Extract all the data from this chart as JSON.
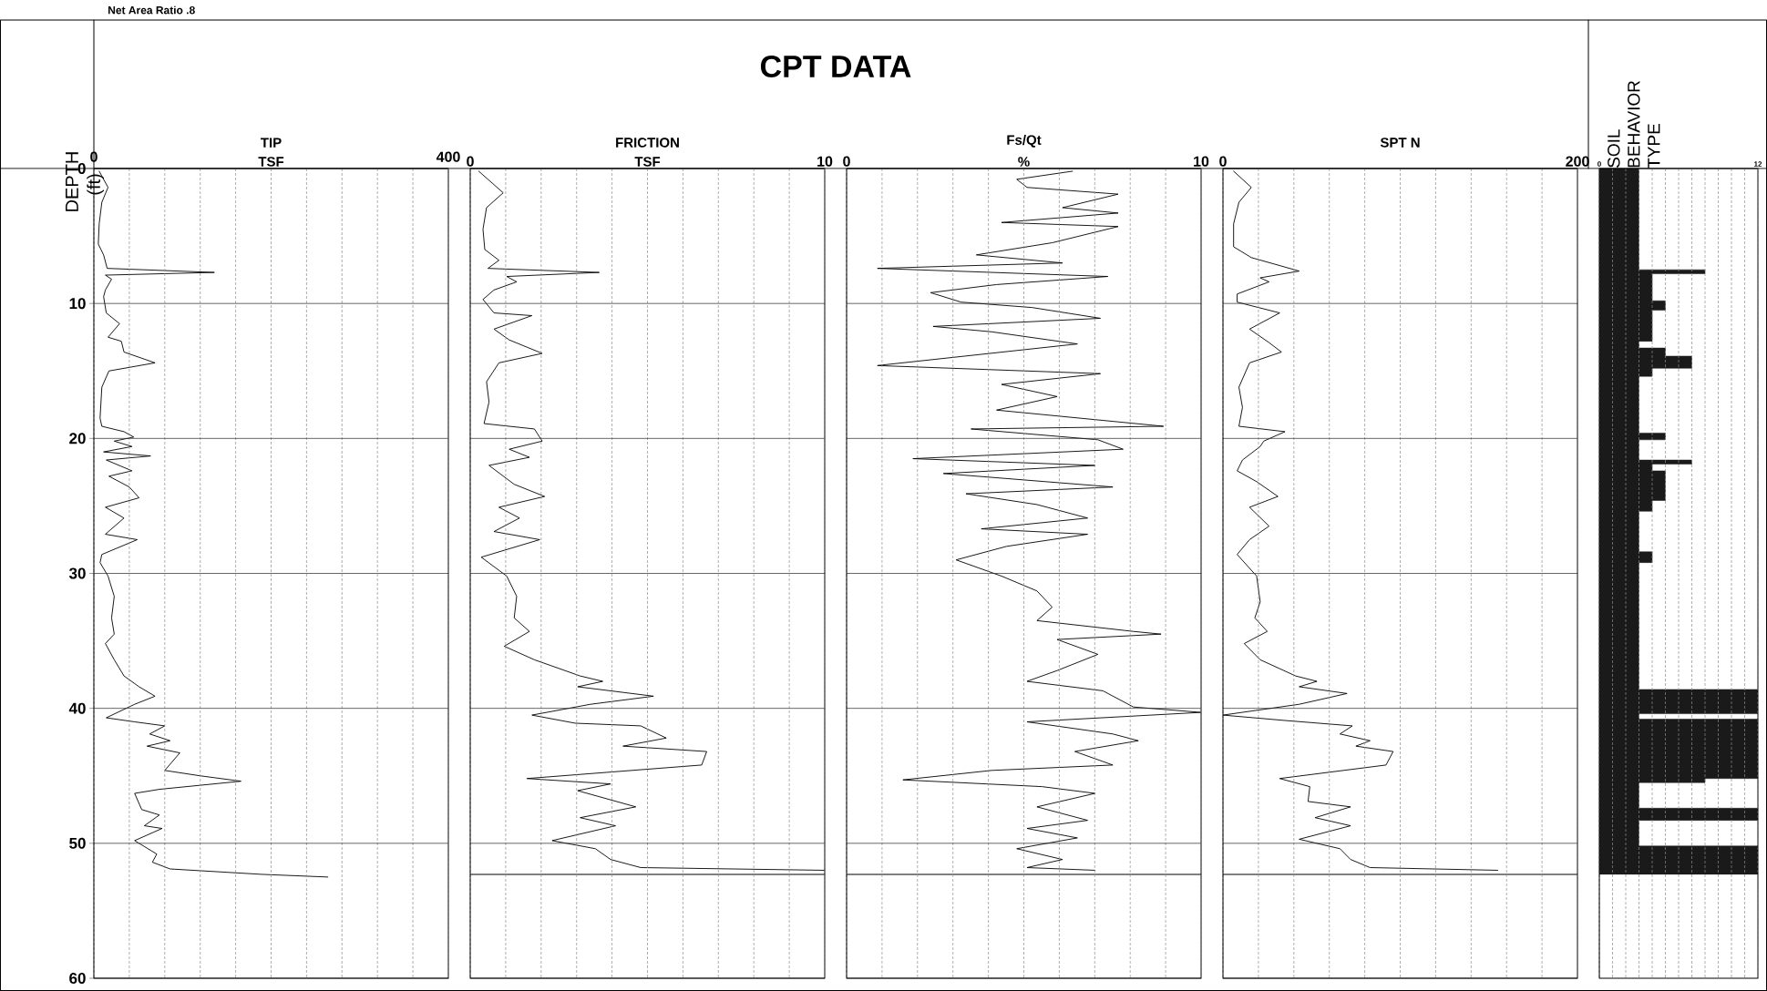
{
  "chart_data": [
    {
      "type": "line",
      "title": "TIP",
      "xlabel": "TSF",
      "ylabel": "DEPTH (ft)",
      "orientation": "horizontal",
      "annotations": [
        "CPT DATA",
        "Net Area Ratio .8"
      ],
      "xlim": [
        0,
        400
      ],
      "xticks": [
        0,
        {
          "value": 40,
          "label": null
        },
        {
          "value": 80,
          "label": null
        },
        {
          "value": 120,
          "label": null
        },
        {
          "value": 160,
          "label": null
        },
        {
          "value": 200,
          "label": null
        },
        {
          "value": 240,
          "label": null
        },
        {
          "value": 280,
          "label": null
        },
        {
          "value": 320,
          "label": null
        },
        {
          "value": 360,
          "label": null
        },
        400
      ],
      "ylim": [
        60,
        0
      ],
      "yticks": [
        0,
        10,
        20,
        30,
        40,
        50,
        60
      ],
      "grid": true,
      "series": [
        {
          "color": "#000000",
          "x": [
            0.2,
            1.4,
            2.5,
            4.1,
            5.6,
            6.4,
            7.4,
            7.7,
            7.9,
            8.2,
            9.0,
            9.5,
            10.7,
            11.5,
            12.5,
            12.8,
            13.6,
            14.4,
            15.0,
            16.2,
            18.5,
            19.1,
            19.5,
            19.9,
            20.2,
            20.6,
            21.0,
            21.3,
            21.6,
            22.4,
            22.8,
            23.6,
            24.4,
            25.1,
            25.9,
            27.1,
            27.5,
            28.6,
            29.2,
            30.2,
            31.7,
            33.3,
            34.5,
            35.2,
            36.4,
            37.6,
            38.4,
            39.1,
            39.7,
            40.7,
            41.0,
            41.3,
            41.9,
            42.4,
            42.8,
            43.3,
            44.6,
            45.0,
            45.4,
            46.0,
            46.3,
            47.5,
            47.9,
            48.7,
            48.9,
            49.8,
            50.8,
            51.4,
            51.9,
            52.3,
            52.5
          ],
          "values": [
            6,
            16,
            9,
            6,
            5,
            11,
            15,
            136,
            13,
            20,
            13,
            11,
            14,
            29,
            16,
            31,
            34,
            69,
            17,
            9,
            7,
            9,
            34,
            45,
            23,
            43,
            11,
            64,
            14,
            43,
            17,
            40,
            51,
            13,
            34,
            13,
            49,
            9,
            7,
            16,
            23,
            20,
            23,
            13,
            23,
            34,
            51,
            69,
            46,
            14,
            46,
            80,
            63,
            86,
            60,
            97,
            80,
            120,
            166,
            74,
            46,
            54,
            74,
            57,
            77,
            46,
            71,
            66,
            86,
            189,
            264
          ]
        }
      ]
    },
    {
      "type": "line",
      "title": "FRICTION",
      "xlabel": "TSF",
      "orientation": "horizontal",
      "xlim": [
        0,
        10
      ],
      "xticks": [
        0,
        {
          "value": 1,
          "label": null
        },
        {
          "value": 2,
          "label": null
        },
        {
          "value": 3,
          "label": null
        },
        {
          "value": 4,
          "label": null
        },
        {
          "value": 5,
          "label": null
        },
        {
          "value": 6,
          "label": null
        },
        {
          "value": 7,
          "label": null
        },
        {
          "value": 8,
          "label": null
        },
        {
          "value": 9,
          "label": null
        },
        10
      ],
      "ylim": [
        60,
        0
      ],
      "yticks": [
        0,
        10,
        20,
        30,
        40,
        50,
        60
      ],
      "tick_labels": "x",
      "grid": true,
      "ref_lines": [
        {
          "axis": "y",
          "value": 52.3
        }
      ],
      "series": [
        {
          "color": "#000000",
          "x": [
            0.2,
            1.8,
            2.9,
            4.5,
            6.0,
            6.8,
            7.4,
            7.7,
            8.0,
            8.4,
            9.0,
            9.7,
            10.7,
            10.9,
            11.9,
            12.7,
            13.7,
            14.4,
            15.8,
            17.3,
            18.9,
            19.3,
            20.2,
            20.8,
            21.4,
            22.0,
            23.4,
            24.3,
            25.1,
            25.9,
            26.9,
            27.5,
            28.8,
            30.2,
            31.7,
            33.3,
            34.3,
            35.4,
            36.4,
            37.6,
            38.0,
            38.4,
            39.1,
            39.7,
            40.5,
            41.1,
            41.3,
            42.2,
            42.8,
            43.2,
            44.2,
            45.2,
            45.6,
            46.1,
            47.3,
            48.1,
            48.7,
            49.8,
            50.4,
            51.2,
            51.8,
            52.0
          ],
          "values": [
            0.24,
            0.93,
            0.46,
            0.36,
            0.41,
            0.81,
            0.5,
            3.64,
            1.03,
            1.31,
            0.67,
            0.36,
            0.67,
            1.74,
            0.67,
            1.1,
            2.03,
            0.81,
            0.46,
            0.53,
            0.39,
            1.81,
            2.03,
            1.1,
            1.67,
            0.53,
            1.24,
            2.1,
            0.81,
            1.39,
            0.67,
            1.96,
            0.31,
            1.03,
            1.31,
            1.24,
            1.67,
            0.96,
            1.81,
            3.1,
            3.74,
            3.03,
            5.17,
            3.39,
            1.74,
            2.96,
            4.81,
            5.53,
            4.31,
            6.67,
            6.53,
            1.6,
            3.96,
            3.03,
            4.67,
            3.1,
            4.1,
            2.31,
            3.53,
            3.96,
            4.81,
            10
          ]
        }
      ]
    },
    {
      "type": "line",
      "title": "Fs/Qt",
      "xlabel": "%",
      "orientation": "horizontal",
      "xlim": [
        0,
        10
      ],
      "xticks": [
        0,
        {
          "value": 1,
          "label": null
        },
        {
          "value": 2,
          "label": null
        },
        {
          "value": 3,
          "label": null
        },
        {
          "value": 4,
          "label": null
        },
        {
          "value": 5,
          "label": null
        },
        {
          "value": 6,
          "label": null
        },
        {
          "value": 7,
          "label": null
        },
        {
          "value": 8,
          "label": null
        },
        {
          "value": 9,
          "label": null
        },
        10
      ],
      "ylim": [
        60,
        0
      ],
      "yticks": [
        0,
        10,
        20,
        30,
        40,
        50,
        60
      ],
      "tick_labels": "x",
      "grid": true,
      "ref_lines": [
        {
          "axis": "y",
          "value": 52.3
        }
      ],
      "series": [
        {
          "color": "#000000",
          "x": [
            0.2,
            0.8,
            1.4,
            1.9,
            2.9,
            3.3,
            4.0,
            4.3,
            5.5,
            6.4,
            7.0,
            7.4,
            8.0,
            8.6,
            9.2,
            9.9,
            10.3,
            11.1,
            11.7,
            12.1,
            13.0,
            14.6,
            15.2,
            16.0,
            16.9,
            17.9,
            19.1,
            19.3,
            20.1,
            20.8,
            21.5,
            22.0,
            22.6,
            23.6,
            24.1,
            24.9,
            25.9,
            26.7,
            27.1,
            28.0,
            29.0,
            30.2,
            31.3,
            32.5,
            33.5,
            34.3,
            34.5,
            34.9,
            36.0,
            37.2,
            38.0,
            38.7,
            39.9,
            40.3,
            41.0,
            41.9,
            42.4,
            43.2,
            44.2,
            44.6,
            45.3,
            45.8,
            46.3,
            47.3,
            48.3,
            48.9,
            49.6,
            50.4,
            51.2,
            51.8,
            52.0
          ],
          "values": [
            6.37,
            4.8,
            5.09,
            7.66,
            6.09,
            7.66,
            4.37,
            7.66,
            5.8,
            3.66,
            6.09,
            0.87,
            7.37,
            4.23,
            2.37,
            3.23,
            5.23,
            7.16,
            2.44,
            4.09,
            6.51,
            0.87,
            7.16,
            4.37,
            5.94,
            4.23,
            8.94,
            3.51,
            7.09,
            7.8,
            1.87,
            7.01,
            2.73,
            7.51,
            3.37,
            5.37,
            6.8,
            3.8,
            6.8,
            4.51,
            3.09,
            4.37,
            5.37,
            5.8,
            5.37,
            8.09,
            8.87,
            5.94,
            7.09,
            5.94,
            5.09,
            7.23,
            8.09,
            10,
            5.09,
            7.51,
            8.23,
            6.44,
            7.51,
            4.09,
            1.59,
            5.51,
            7.01,
            5.37,
            6.8,
            5.09,
            6.51,
            4.8,
            6.09,
            5.09,
            7.01
          ]
        }
      ]
    },
    {
      "type": "line",
      "title": "SPT N",
      "orientation": "horizontal",
      "xlim": [
        0,
        200
      ],
      "xticks": [
        0,
        {
          "value": 20,
          "label": null
        },
        {
          "value": 40,
          "label": null
        },
        {
          "value": 60,
          "label": null
        },
        {
          "value": 80,
          "label": null
        },
        {
          "value": 100,
          "label": null
        },
        {
          "value": 120,
          "label": null
        },
        {
          "value": 140,
          "label": null
        },
        {
          "value": 160,
          "label": null
        },
        {
          "value": 180,
          "label": null
        },
        200
      ],
      "ylim": [
        60,
        0
      ],
      "yticks": [
        0,
        10,
        20,
        30,
        40,
        50,
        60
      ],
      "tick_labels": "x",
      "grid": true,
      "ref_lines": [
        {
          "axis": "y",
          "value": 52.3
        }
      ],
      "series": [
        {
          "color": "#000000",
          "x": [
            0.2,
            1.4,
            2.5,
            4.1,
            5.8,
            6.6,
            7.6,
            8.1,
            8.4,
            9.3,
            9.9,
            10.7,
            11.9,
            12.9,
            13.6,
            14.4,
            16.2,
            17.7,
            19.1,
            19.5,
            20.2,
            20.6,
            21.6,
            22.4,
            23.2,
            24.3,
            25.1,
            26.5,
            27.5,
            28.6,
            30.2,
            32.1,
            33.3,
            34.3,
            35.2,
            36.4,
            37.6,
            38.0,
            38.4,
            38.9,
            39.7,
            40.5,
            40.9,
            41.3,
            41.9,
            42.4,
            42.8,
            43.2,
            44.2,
            45.2,
            45.8,
            46.9,
            47.3,
            48.1,
            48.7,
            49.7,
            50.4,
            51.2,
            51.8,
            52.0
          ],
          "values": [
            6,
            16,
            9,
            6,
            6,
            16,
            43,
            21,
            26,
            8,
            8,
            32,
            15,
            26,
            33,
            15,
            9,
            11,
            9,
            35,
            23,
            21,
            11,
            8,
            19,
            31,
            15,
            26,
            15,
            8,
            19,
            21,
            18,
            25,
            12,
            21,
            41,
            53,
            43,
            70,
            43,
            0,
            35,
            73,
            66,
            83,
            75,
            96,
            92,
            32,
            49,
            48,
            72,
            52,
            72,
            43,
            66,
            72,
            83,
            155
          ]
        }
      ]
    },
    {
      "type": "area",
      "title": "SOIL BEHAVIOR TYPE",
      "orientation": "horizontal",
      "xlim": [
        0,
        12
      ],
      "xticks": [
        0,
        {
          "value": 1,
          "label": null
        },
        {
          "value": 2,
          "label": null
        },
        {
          "value": 3,
          "label": null
        },
        {
          "value": 4,
          "label": null
        },
        {
          "value": 5,
          "label": null
        },
        {
          "value": 6,
          "label": null
        },
        {
          "value": 7,
          "label": null
        },
        {
          "value": 8,
          "label": null
        },
        {
          "value": 9,
          "label": null
        },
        {
          "value": 10,
          "label": null
        },
        {
          "value": 11,
          "label": null
        },
        12
      ],
      "ylim": [
        60,
        0
      ],
      "yticks": [
        0,
        10,
        20,
        30,
        40,
        50,
        60
      ],
      "tick_labels": "x",
      "grid": "x",
      "series": [
        {
          "color": "#1a1a1a",
          "x": [
            0,
            7.5,
            7.5,
            7.8,
            7.8,
            9.8,
            9.8,
            10.5,
            10.5,
            12.8,
            12.8,
            13.3,
            13.3,
            13.9,
            13.9,
            14.8,
            14.8,
            15.4,
            15.4,
            19.6,
            19.6,
            20.1,
            20.1,
            21.6,
            21.6,
            21.9,
            21.9,
            22.4,
            22.4,
            24.6,
            24.6,
            25.4,
            25.4,
            28.4,
            28.4,
            29.2,
            29.2,
            38.6,
            38.6,
            40.4,
            40.4,
            40.8,
            40.8,
            45.2,
            45.2,
            45.5,
            45.5,
            47.4,
            47.4,
            48.3,
            48.3,
            50.2,
            50.2,
            52.3
          ],
          "values": [
            3,
            3,
            8,
            8,
            4,
            4,
            5,
            5,
            4,
            4,
            3,
            3,
            5,
            5,
            7,
            7,
            4,
            4,
            3,
            3,
            5,
            5,
            3,
            3,
            7,
            7,
            4,
            4,
            5,
            5,
            4,
            4,
            3,
            3,
            4,
            4,
            3,
            3,
            12,
            12,
            3,
            3,
            12,
            12,
            8,
            8,
            3,
            3,
            12,
            12,
            3,
            3,
            12,
            12
          ]
        }
      ]
    }
  ]
}
